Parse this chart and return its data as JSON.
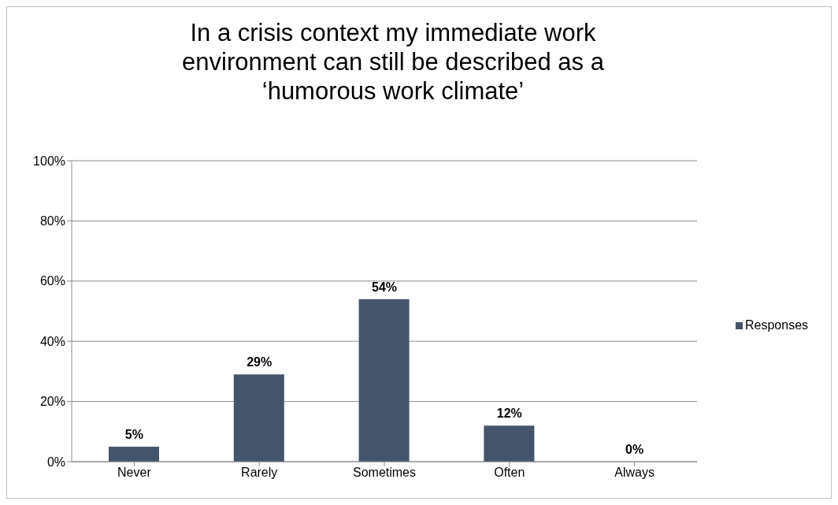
{
  "chart_data": {
    "type": "bar",
    "title": "In a crisis context my immediate work environment can still be described as a ‘humorous work climate’",
    "categories": [
      "Never",
      "Rarely",
      "Sometimes",
      "Often",
      "Always"
    ],
    "series": [
      {
        "name": "Responses",
        "color": "#44546a",
        "values": [
          5,
          29,
          54,
          12,
          0
        ],
        "value_labels": [
          "5%",
          "29%",
          "54%",
          "12%",
          "0%"
        ]
      }
    ],
    "ylim": [
      0,
      100
    ],
    "yticks": [
      {
        "value": 0,
        "label": "0%"
      },
      {
        "value": 20,
        "label": "20%"
      },
      {
        "value": 40,
        "label": "40%"
      },
      {
        "value": 60,
        "label": "60%"
      },
      {
        "value": 80,
        "label": "80%"
      },
      {
        "value": 100,
        "label": "100%"
      }
    ],
    "grid": "y",
    "legend": "right"
  }
}
